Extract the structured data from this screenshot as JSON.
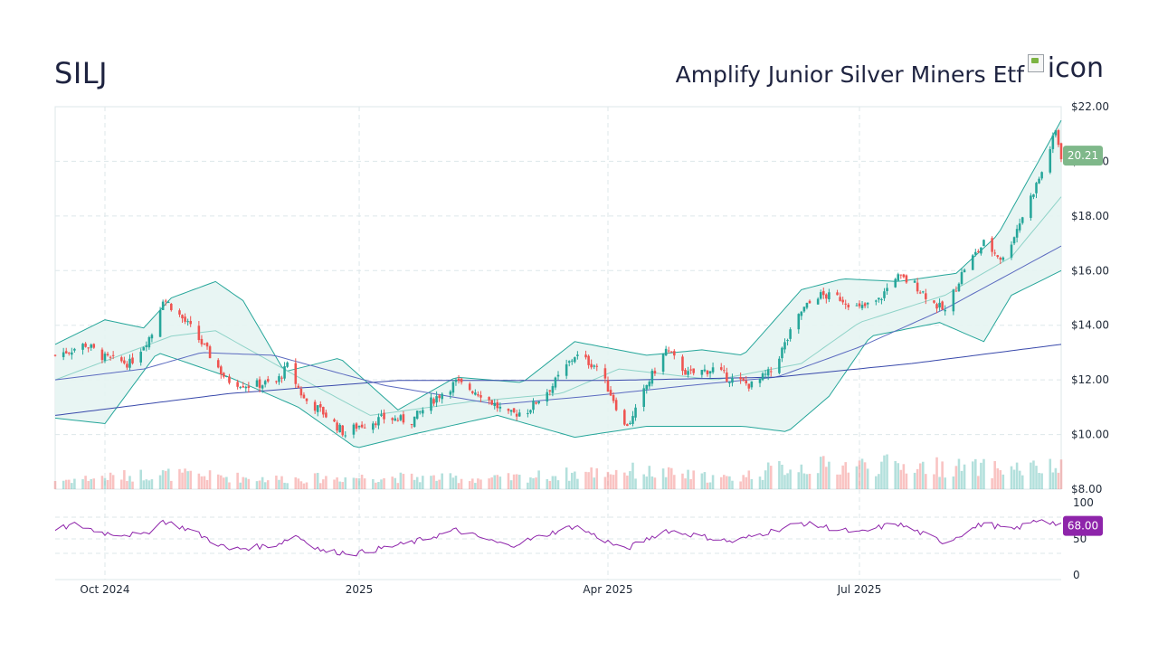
{
  "header": {
    "ticker": "SILJ",
    "company": "Amplify Junior Silver Miners Etf",
    "logo_alt": "icon",
    "logo_icon": "broken-image-icon"
  },
  "colors": {
    "up": "#26a69a",
    "down": "#ef5350",
    "band_fill": "#e6f4f2",
    "band_line": "#26a69a",
    "ma_short": "#8fd3c8",
    "ma_mid": "#5c6bc0",
    "ma_long": "#3949ab",
    "rsi": "#8e24aa",
    "badge_price": "#7fb88a",
    "badge_rsi": "#8e24aa",
    "grid": "#dde7ea"
  },
  "chart_data": [
    {
      "type": "candlestick",
      "title": "SILJ",
      "x_axis": {
        "ticks": [
          "Oct 2024",
          "2025",
          "Apr 2025",
          "Jul 2025"
        ],
        "range": [
          "2024-09-13",
          "2025-09-12"
        ]
      },
      "y_axis": {
        "ticks": [
          "$8.00",
          "$10.00",
          "$12.00",
          "$14.00",
          "$16.00",
          "$18.00",
          "$20.00",
          "$22.00"
        ],
        "ylim": [
          8,
          22
        ]
      },
      "grid": true,
      "last_price_label": "20.21",
      "close_anchors": [
        [
          "2024-09-13",
          12.9
        ],
        [
          "2024-09-24",
          13.3
        ],
        [
          "2024-10-01",
          12.8
        ],
        [
          "2024-10-10",
          12.6
        ],
        [
          "2024-10-18",
          13.7
        ],
        [
          "2024-10-22",
          15.0
        ],
        [
          "2024-10-25",
          14.7
        ],
        [
          "2024-11-01",
          13.9
        ],
        [
          "2024-11-06",
          13.2
        ],
        [
          "2024-11-14",
          12.0
        ],
        [
          "2024-11-22",
          11.8
        ],
        [
          "2024-12-02",
          11.9
        ],
        [
          "2024-12-06",
          12.5
        ],
        [
          "2024-12-12",
          11.3
        ],
        [
          "2024-12-19",
          10.8
        ],
        [
          "2024-12-27",
          10.0
        ],
        [
          "2024-12-31",
          10.3
        ],
        [
          "2025-01-10",
          10.6
        ],
        [
          "2025-01-20",
          10.5
        ],
        [
          "2025-01-28",
          11.3
        ],
        [
          "2025-02-05",
          11.9
        ],
        [
          "2025-02-14",
          11.5
        ],
        [
          "2025-02-24",
          10.7
        ],
        [
          "2025-03-03",
          10.9
        ],
        [
          "2025-03-12",
          11.8
        ],
        [
          "2025-03-20",
          12.9
        ],
        [
          "2025-03-28",
          12.5
        ],
        [
          "2025-04-03",
          11.3
        ],
        [
          "2025-04-07",
          10.3
        ],
        [
          "2025-04-10",
          10.6
        ],
        [
          "2025-04-15",
          11.8
        ],
        [
          "2025-04-22",
          13.1
        ],
        [
          "2025-04-30",
          12.2
        ],
        [
          "2025-05-09",
          12.4
        ],
        [
          "2025-05-16",
          12.0
        ],
        [
          "2025-05-23",
          11.8
        ],
        [
          "2025-05-30",
          12.3
        ],
        [
          "2025-06-04",
          13.3
        ],
        [
          "2025-06-10",
          14.5
        ],
        [
          "2025-06-16",
          15.1
        ],
        [
          "2025-06-24",
          15.0
        ],
        [
          "2025-07-01",
          14.6
        ],
        [
          "2025-07-08",
          14.9
        ],
        [
          "2025-07-14",
          15.8
        ],
        [
          "2025-07-21",
          15.5
        ],
        [
          "2025-07-28",
          14.8
        ],
        [
          "2025-08-01",
          14.5
        ],
        [
          "2025-08-08",
          16.1
        ],
        [
          "2025-08-15",
          17.0
        ],
        [
          "2025-08-22",
          16.4
        ],
        [
          "2025-08-29",
          18.0
        ],
        [
          "2025-09-05",
          19.6
        ],
        [
          "2025-09-10",
          21.1
        ],
        [
          "2025-09-12",
          20.2
        ]
      ],
      "moving_averages": [
        {
          "kind": "ma-short",
          "anchors": [
            [
              "2024-09-13",
              12.0
            ],
            [
              "2024-10-25",
              13.6
            ],
            [
              "2024-11-10",
              13.8
            ],
            [
              "2024-12-10",
              12.1
            ],
            [
              "2025-01-05",
              10.7
            ],
            [
              "2025-02-10",
              11.2
            ],
            [
              "2025-03-15",
              11.5
            ],
            [
              "2025-04-05",
              12.4
            ],
            [
              "2025-05-10",
              12.0
            ],
            [
              "2025-06-10",
              12.6
            ],
            [
              "2025-07-01",
              14.1
            ],
            [
              "2025-08-01",
              15.1
            ],
            [
              "2025-08-25",
              16.5
            ],
            [
              "2025-09-12",
              18.7
            ]
          ]
        },
        {
          "kind": "ma-mid",
          "anchors": [
            [
              "2024-09-13",
              12.0
            ],
            [
              "2024-10-15",
              12.4
            ],
            [
              "2024-11-05",
              13.0
            ],
            [
              "2024-12-01",
              12.9
            ],
            [
              "2025-01-10",
              11.8
            ],
            [
              "2025-02-20",
              11.1
            ],
            [
              "2025-03-25",
              11.4
            ],
            [
              "2025-05-01",
              11.8
            ],
            [
              "2025-06-01",
              12.1
            ],
            [
              "2025-07-01",
              13.2
            ],
            [
              "2025-08-01",
              14.6
            ],
            [
              "2025-09-12",
              16.9
            ]
          ]
        },
        {
          "kind": "ma-long",
          "anchors": [
            [
              "2024-09-13",
              10.7
            ],
            [
              "2024-11-15",
              11.5
            ],
            [
              "2025-01-15",
              11.98
            ],
            [
              "2025-04-01",
              11.98
            ],
            [
              "2025-06-01",
              12.1
            ],
            [
              "2025-07-20",
              12.6
            ],
            [
              "2025-09-12",
              13.3
            ]
          ]
        }
      ],
      "bollinger": {
        "upper": [
          [
            "2024-09-13",
            13.3
          ],
          [
            "2024-10-01",
            14.2
          ],
          [
            "2024-10-15",
            13.9
          ],
          [
            "2024-10-25",
            15.0
          ],
          [
            "2024-11-10",
            15.6
          ],
          [
            "2024-11-20",
            14.9
          ],
          [
            "2024-12-05",
            12.3
          ],
          [
            "2024-12-25",
            12.8
          ],
          [
            "2025-01-15",
            10.9
          ],
          [
            "2025-02-05",
            12.1
          ],
          [
            "2025-03-01",
            11.9
          ],
          [
            "2025-03-20",
            13.4
          ],
          [
            "2025-04-15",
            12.9
          ],
          [
            "2025-05-05",
            13.1
          ],
          [
            "2025-05-20",
            12.9
          ],
          [
            "2025-06-10",
            15.3
          ],
          [
            "2025-06-25",
            15.7
          ],
          [
            "2025-07-15",
            15.6
          ],
          [
            "2025-08-05",
            15.9
          ],
          [
            "2025-08-20",
            17.3
          ],
          [
            "2025-09-12",
            21.5
          ]
        ],
        "lower": [
          [
            "2024-09-13",
            10.6
          ],
          [
            "2024-10-01",
            10.4
          ],
          [
            "2024-10-20",
            13.0
          ],
          [
            "2024-11-15",
            12.1
          ],
          [
            "2024-12-10",
            11.0
          ],
          [
            "2024-12-31",
            9.5
          ],
          [
            "2025-01-20",
            10.0
          ],
          [
            "2025-02-20",
            10.7
          ],
          [
            "2025-03-20",
            9.9
          ],
          [
            "2025-04-15",
            10.3
          ],
          [
            "2025-05-20",
            10.3
          ],
          [
            "2025-06-05",
            10.1
          ],
          [
            "2025-06-20",
            11.4
          ],
          [
            "2025-07-05",
            13.6
          ],
          [
            "2025-07-30",
            14.1
          ],
          [
            "2025-08-15",
            13.4
          ],
          [
            "2025-08-25",
            15.1
          ],
          [
            "2025-09-12",
            16.0
          ]
        ]
      }
    },
    {
      "type": "bar",
      "title": "",
      "volume_profile": [
        [
          "2024-09-13",
          0.25
        ],
        [
          "2024-10-20",
          0.45
        ],
        [
          "2024-12-01",
          0.3
        ],
        [
          "2025-01-05",
          0.35
        ],
        [
          "2025-02-20",
          0.3
        ],
        [
          "2025-04-07",
          0.55
        ],
        [
          "2025-05-15",
          0.3
        ],
        [
          "2025-06-05",
          0.65
        ],
        [
          "2025-07-10",
          0.7
        ],
        [
          "2025-08-15",
          0.6
        ],
        [
          "2025-09-12",
          0.6
        ]
      ]
    },
    {
      "type": "line",
      "title": "",
      "y_axis": {
        "ticks": [
          "100",
          "50",
          "0"
        ],
        "ylim": [
          0,
          100
        ]
      },
      "last_value_label": "68.00",
      "rsi_anchors": [
        [
          "2024-09-13",
          62
        ],
        [
          "2024-09-20",
          70
        ],
        [
          "2024-10-01",
          58
        ],
        [
          "2024-10-15",
          55
        ],
        [
          "2024-10-22",
          75
        ],
        [
          "2024-11-01",
          62
        ],
        [
          "2024-11-15",
          35
        ],
        [
          "2024-12-02",
          42
        ],
        [
          "2024-12-09",
          55
        ],
        [
          "2024-12-19",
          33
        ],
        [
          "2024-12-31",
          30
        ],
        [
          "2025-01-20",
          45
        ],
        [
          "2025-02-05",
          62
        ],
        [
          "2025-02-24",
          40
        ],
        [
          "2025-03-20",
          68
        ],
        [
          "2025-04-07",
          35
        ],
        [
          "2025-04-22",
          62
        ],
        [
          "2025-05-16",
          46
        ],
        [
          "2025-06-10",
          72
        ],
        [
          "2025-07-01",
          58
        ],
        [
          "2025-07-14",
          72
        ],
        [
          "2025-08-01",
          45
        ],
        [
          "2025-08-15",
          72
        ],
        [
          "2025-08-25",
          62
        ],
        [
          "2025-09-05",
          78
        ],
        [
          "2025-09-12",
          68
        ]
      ]
    }
  ]
}
